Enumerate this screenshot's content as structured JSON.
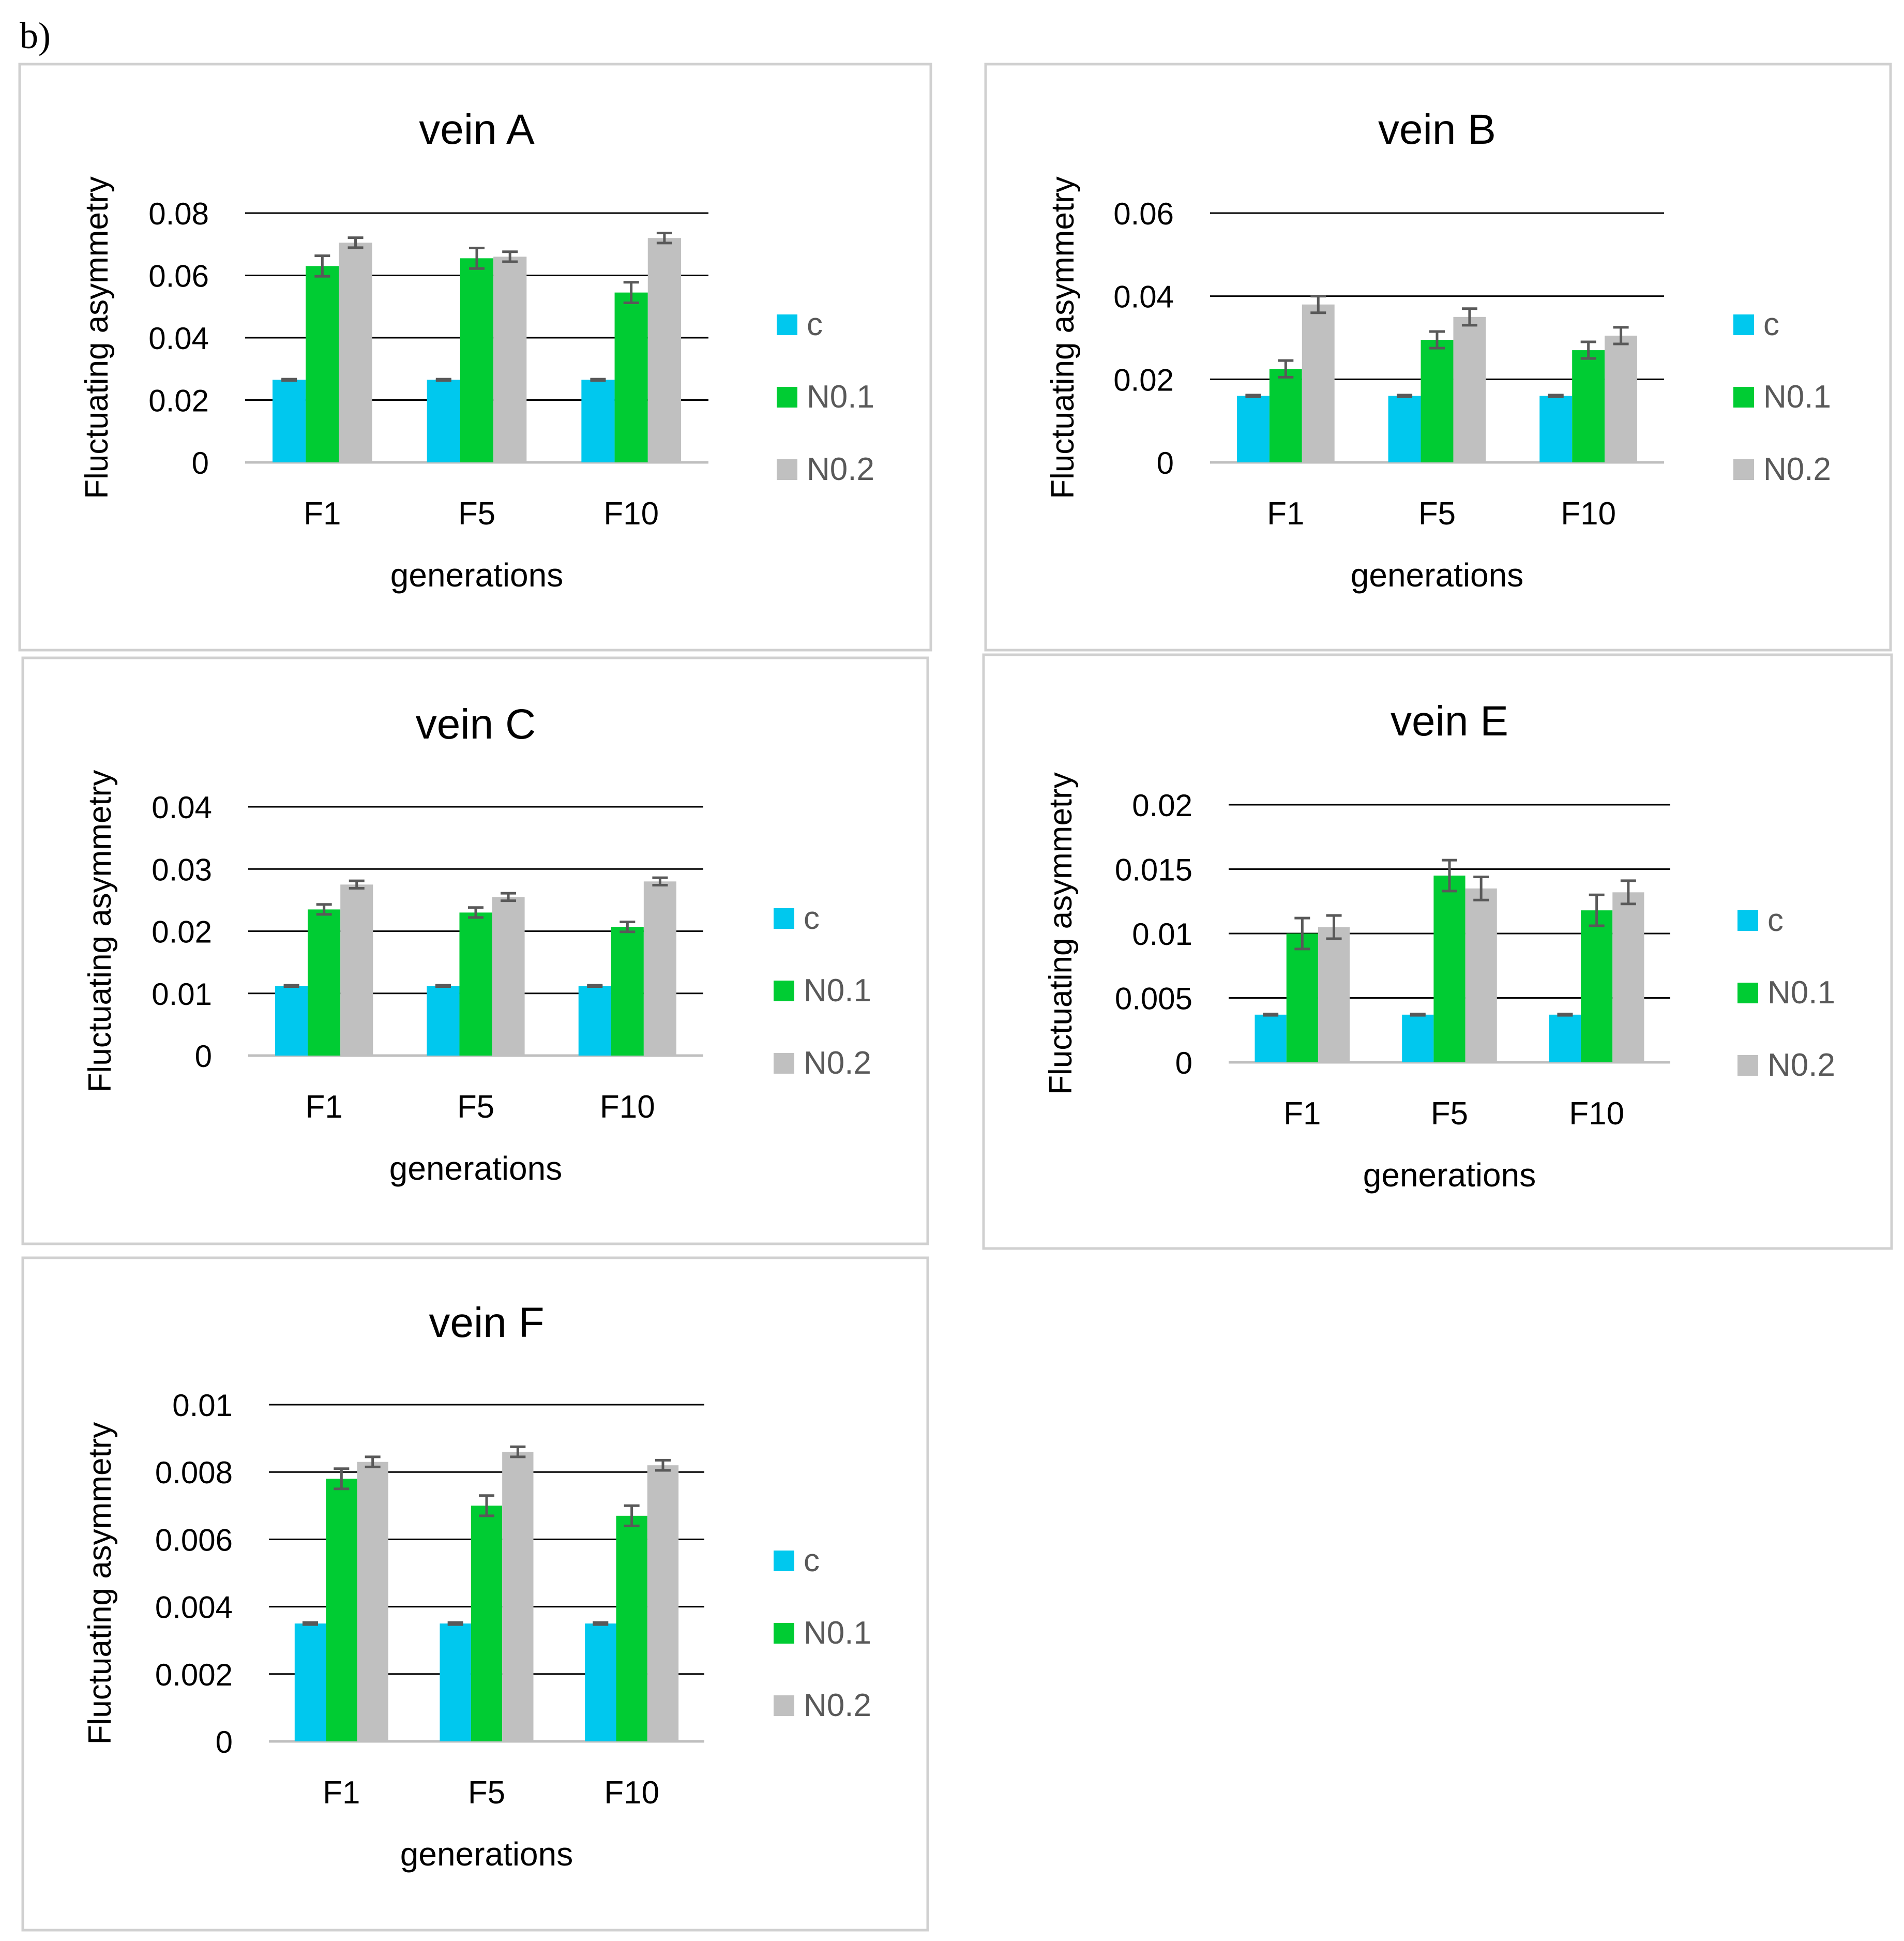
{
  "figure_label": "b)",
  "legend_labels": [
    "c",
    "N0.1",
    "N0.2"
  ],
  "colors": {
    "c": "#00C8EE",
    "N0.1": "#00CC33",
    "N0.2": "#C0C0C0",
    "error_bar": "#595959",
    "gridline": "#000000",
    "frame": "#D0D0D0"
  },
  "chart_data": [
    {
      "type": "bar",
      "title": "vein A",
      "xlabel": "generations",
      "ylabel": "Fluctuating asymmetry",
      "categories": [
        "F1",
        "F5",
        "F10"
      ],
      "ylim": [
        0,
        0.08
      ],
      "yticks": [
        0,
        0.02,
        0.04,
        0.06,
        0.08
      ],
      "ytick_labels": [
        "0",
        "0.02",
        "0.04",
        "0.06",
        "0.08"
      ],
      "legend": "right",
      "series": [
        {
          "name": "c",
          "values": [
            0.0265,
            0.0265,
            0.0265
          ],
          "errors": [
            0.0002,
            0.0002,
            0.0002
          ]
        },
        {
          "name": "N0.1",
          "values": [
            0.063,
            0.0655,
            0.0545
          ],
          "errors": [
            0.0033,
            0.0033,
            0.0033
          ]
        },
        {
          "name": "N0.2",
          "values": [
            0.0705,
            0.066,
            0.072
          ],
          "errors": [
            0.0016,
            0.0016,
            0.0016
          ]
        }
      ]
    },
    {
      "type": "bar",
      "title": "vein B",
      "xlabel": "generations",
      "ylabel": "Fluctuating asymmetry",
      "categories": [
        "F1",
        "F5",
        "F10"
      ],
      "ylim": [
        0,
        0.06
      ],
      "yticks": [
        0,
        0.02,
        0.04,
        0.06
      ],
      "ytick_labels": [
        "0",
        "0.02",
        "0.04",
        "0.06"
      ],
      "legend": "right",
      "series": [
        {
          "name": "c",
          "values": [
            0.016,
            0.016,
            0.016
          ],
          "errors": [
            0.0002,
            0.0002,
            0.0002
          ]
        },
        {
          "name": "N0.1",
          "values": [
            0.0225,
            0.0295,
            0.027
          ],
          "errors": [
            0.002,
            0.002,
            0.002
          ]
        },
        {
          "name": "N0.2",
          "values": [
            0.038,
            0.035,
            0.0305
          ],
          "errors": [
            0.002,
            0.002,
            0.002
          ]
        }
      ]
    },
    {
      "type": "bar",
      "title": "vein C",
      "xlabel": "generations",
      "ylabel": "Fluctuating asymmetry",
      "categories": [
        "F1",
        "F5",
        "F10"
      ],
      "ylim": [
        0,
        0.04
      ],
      "yticks": [
        0,
        0.01,
        0.02,
        0.03,
        0.04
      ],
      "ytick_labels": [
        "0",
        "0.01",
        "0.02",
        "0.03",
        "0.04"
      ],
      "legend": "right",
      "series": [
        {
          "name": "c",
          "values": [
            0.0112,
            0.0112,
            0.0112
          ],
          "errors": [
            0.0001,
            0.0001,
            0.0001
          ]
        },
        {
          "name": "N0.1",
          "values": [
            0.0235,
            0.023,
            0.0207
          ],
          "errors": [
            0.0008,
            0.0008,
            0.0008
          ]
        },
        {
          "name": "N0.2",
          "values": [
            0.0275,
            0.0255,
            0.028
          ],
          "errors": [
            0.0006,
            0.0006,
            0.0006
          ]
        }
      ]
    },
    {
      "type": "bar",
      "title": "vein E",
      "xlabel": "generations",
      "ylabel": "Fluctuating asymmetry",
      "categories": [
        "F1",
        "F5",
        "F10"
      ],
      "ylim": [
        0,
        0.02
      ],
      "yticks": [
        0,
        0.005,
        0.01,
        0.015,
        0.02
      ],
      "ytick_labels": [
        "0",
        "0.005",
        "0.01",
        "0.015",
        "0.02"
      ],
      "legend": "right",
      "series": [
        {
          "name": "c",
          "values": [
            0.0037,
            0.0037,
            0.0037
          ],
          "errors": [
            5e-05,
            5e-05,
            5e-05
          ]
        },
        {
          "name": "N0.1",
          "values": [
            0.01,
            0.0145,
            0.0118
          ],
          "errors": [
            0.0012,
            0.0012,
            0.0012
          ]
        },
        {
          "name": "N0.2",
          "values": [
            0.0105,
            0.0135,
            0.0132
          ],
          "errors": [
            0.0009,
            0.0009,
            0.0009
          ]
        }
      ]
    },
    {
      "type": "bar",
      "title": "vein F",
      "xlabel": "generations",
      "ylabel": "Fluctuating asymmetry",
      "categories": [
        "F1",
        "F5",
        "F10"
      ],
      "ylim": [
        0,
        0.01
      ],
      "yticks": [
        0,
        0.002,
        0.004,
        0.006,
        0.008,
        0.01
      ],
      "ytick_labels": [
        "0",
        "0.002",
        "0.004",
        "0.006",
        "0.008",
        "0.01"
      ],
      "legend": "right",
      "series": [
        {
          "name": "c",
          "values": [
            0.0035,
            0.0035,
            0.0035
          ],
          "errors": [
            3e-05,
            3e-05,
            3e-05
          ]
        },
        {
          "name": "N0.1",
          "values": [
            0.0078,
            0.007,
            0.0067
          ],
          "errors": [
            0.0003,
            0.0003,
            0.0003
          ]
        },
        {
          "name": "N0.2",
          "values": [
            0.0083,
            0.0086,
            0.0082
          ],
          "errors": [
            0.00015,
            0.00015,
            0.00015
          ]
        }
      ]
    }
  ]
}
